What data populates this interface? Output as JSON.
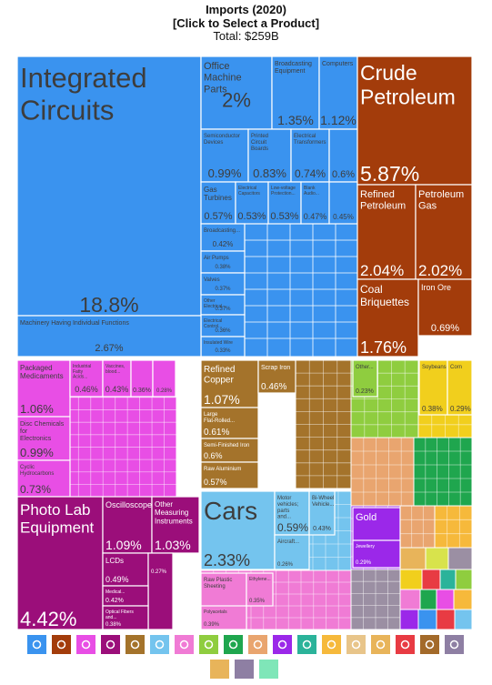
{
  "header": {
    "title": "Imports (2020)",
    "subtitle": "[Click to Select a Product]",
    "total": "Total: $259B"
  },
  "colors": {
    "machinery": "#3a93ef",
    "minerals": "#a33c0b",
    "chemicals": "#e84ee5",
    "instruments": "#9b0e7a",
    "metals": "#a4732b",
    "transport": "#74c4ee",
    "plastics": "#f07bd5",
    "vegetable": "#8fcd3f",
    "animal_veg_fats": "#f1cf1d",
    "stone_glass": "#e9a56f",
    "animal": "#1fa64e",
    "precious_metals": "#9b28e9",
    "textiles": "#2bb39a",
    "misc": "#9b8fa3",
    "grid": "#ffffff"
  },
  "icons": [
    "machine-icon",
    "mineral-icon",
    "chemical-icon",
    "instrument-icon",
    "metal-icon",
    "vehicle-icon",
    "plastic-icon",
    "vegetable-icon",
    "animal-icon",
    "stone-icon",
    "jewel-icon",
    "textile-icon",
    "foodstuff-icon",
    "shoe-icon",
    "paper-icon",
    "weapon-icon",
    "wood-icon",
    "art-icon",
    "misc-icon",
    "fat-icon",
    "hide-icon"
  ],
  "chart_data": {
    "type": "treemap",
    "title": "Imports (2020)",
    "total": "Total: $259B",
    "tiles": [
      {
        "name": "Integrated Circuits",
        "value": "18.8%"
      },
      {
        "name": "Office Machine Parts",
        "value": "2%"
      },
      {
        "name": "Broadcasting Equipment",
        "value": "1.35%"
      },
      {
        "name": "Computers",
        "value": "1.12%"
      },
      {
        "name": "Semiconductor Devices",
        "value": "0.99%"
      },
      {
        "name": "Printed Circuit Boards",
        "value": "0.83%"
      },
      {
        "name": "Electrical Transformers",
        "value": "0.74%"
      },
      {
        "name": "",
        "value": "0.6%"
      },
      {
        "name": "Gas Turbines",
        "value": "0.57%"
      },
      {
        "name": "Electrical Capacitors",
        "value": "0.53%"
      },
      {
        "name": "Low-voltage Protection...",
        "value": "0.53%"
      },
      {
        "name": "Blank Audio...",
        "value": "0.47%"
      },
      {
        "name": "",
        "value": "0.45%"
      },
      {
        "name": "Broadcasting...",
        "value": "0.42%"
      },
      {
        "name": "Air Pumps",
        "value": "0.38%"
      },
      {
        "name": "Valves",
        "value": "0.37%"
      },
      {
        "name": "Other Electrical...",
        "value": "0.37%"
      },
      {
        "name": "Electrical Control...",
        "value": "0.36%"
      },
      {
        "name": "Insulated Wire",
        "value": "0.33%"
      },
      {
        "name": "Machinery Having Individual Functions",
        "value": "2.67%"
      },
      {
        "name": "Crude Petroleum",
        "value": "5.87%"
      },
      {
        "name": "Refined Petroleum",
        "value": "2.04%"
      },
      {
        "name": "Petroleum Gas",
        "value": "2.02%"
      },
      {
        "name": "Coal Briquettes",
        "value": "1.76%"
      },
      {
        "name": "Iron Ore",
        "value": "0.69%"
      },
      {
        "name": "Packaged Medicaments",
        "value": "1.06%"
      },
      {
        "name": "Industrial Fatty Acids...",
        "value": "0.46%"
      },
      {
        "name": "Vaccines, blood...",
        "value": "0.43%"
      },
      {
        "name": "",
        "value": "0.36%"
      },
      {
        "name": "",
        "value": "0.28%"
      },
      {
        "name": "Disc Chemicals for Electronics",
        "value": "0.99%"
      },
      {
        "name": "Cyclic Hydrocarbons",
        "value": "0.73%"
      },
      {
        "name": "Photo Lab Equipment",
        "value": "4.42%"
      },
      {
        "name": "Oscilloscopes",
        "value": "1.09%"
      },
      {
        "name": "Other Measuring Instruments",
        "value": "1.03%"
      },
      {
        "name": "LCDs",
        "value": "0.49%"
      },
      {
        "name": "",
        "value": "0.27%"
      },
      {
        "name": "Medical...",
        "value": "0.42%"
      },
      {
        "name": "Optical Fibers and...",
        "value": "0.38%"
      },
      {
        "name": "Refined Copper",
        "value": "1.07%"
      },
      {
        "name": "Scrap Iron",
        "value": "0.46%"
      },
      {
        "name": "Large Flat-Rolled...",
        "value": "0.61%"
      },
      {
        "name": "Semi-Finished Iron",
        "value": "0.6%"
      },
      {
        "name": "Raw Aluminium",
        "value": "0.57%"
      },
      {
        "name": "Cars",
        "value": "2.33%"
      },
      {
        "name": "Motor vehicles; parts and...",
        "value": "0.59%"
      },
      {
        "name": "Bi-Wheel Vehicle...",
        "value": "0.43%"
      },
      {
        "name": "Aircraft...",
        "value": "0.26%"
      },
      {
        "name": "Raw Plastic Sheeting",
        "value": "0.61%"
      },
      {
        "name": "Ethylene...",
        "value": "0.35%"
      },
      {
        "name": "Polyacetals",
        "value": "0.39%"
      },
      {
        "name": "Soybeans",
        "value": "0.38%"
      },
      {
        "name": "Corn",
        "value": "0.29%"
      },
      {
        "name": "Other...",
        "value": "0.23%"
      },
      {
        "name": "Gold",
        "value": "0.7%"
      },
      {
        "name": "Jewellery",
        "value": "0.29%"
      }
    ]
  }
}
